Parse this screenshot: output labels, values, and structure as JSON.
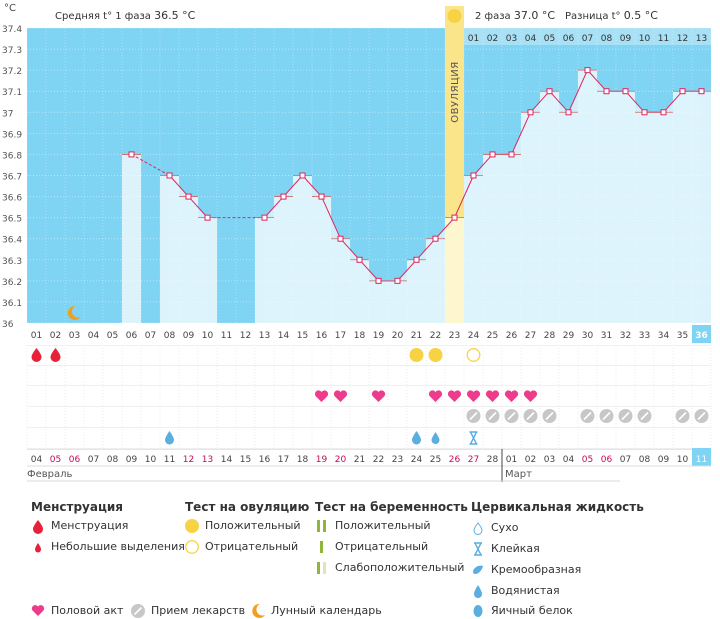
{
  "chart_data": {
    "type": "line",
    "title": "",
    "unit": "°C",
    "ylim": [
      36,
      37.4
    ],
    "y_ticks": [
      "36",
      "36.1",
      "36.2",
      "36.3",
      "36.4",
      "36.5",
      "36.6",
      "36.7",
      "36.8",
      "36.9",
      "37",
      "37.1",
      "37.2",
      "37.3",
      "37.4"
    ],
    "phase1_label": "Средняя t° 1 фаза",
    "phase1_value": "36.5 °C",
    "phase2_label": "2 фаза",
    "phase2_value": "37.0 °C",
    "diff_label": "Разница t°",
    "diff_value": "0.5 °C",
    "ovulation_label": "ОВУЛЯЦИЯ",
    "ovulation_day": 23,
    "cycle_days": [
      "01",
      "02",
      "03",
      "04",
      "05",
      "06",
      "07",
      "08",
      "09",
      "10",
      "11",
      "12",
      "13",
      "14",
      "15",
      "16",
      "17",
      "18",
      "19",
      "20",
      "21",
      "22",
      "23",
      "24",
      "25",
      "26",
      "27",
      "28",
      "29",
      "30",
      "31",
      "32",
      "33",
      "34",
      "35",
      "36"
    ],
    "phase2_days": [
      "01",
      "02",
      "03",
      "04",
      "05",
      "06",
      "07",
      "08",
      "09",
      "10",
      "11",
      "12",
      "13"
    ],
    "temperatures": [
      null,
      null,
      null,
      null,
      null,
      36.8,
      null,
      36.7,
      36.6,
      36.5,
      null,
      null,
      36.5,
      36.6,
      36.7,
      36.6,
      36.4,
      36.3,
      36.2,
      36.2,
      36.3,
      36.4,
      36.5,
      36.7,
      36.8,
      36.8,
      37.0,
      37.1,
      37.0,
      37.2,
      37.1,
      37.1,
      37.0,
      37.0,
      37.1,
      37.1
    ],
    "dates": [
      "04",
      "05",
      "06",
      "07",
      "08",
      "09",
      "10",
      "11",
      "12",
      "13",
      "14",
      "15",
      "16",
      "17",
      "18",
      "19",
      "20",
      "21",
      "22",
      "23",
      "24",
      "25",
      "26",
      "27",
      "28",
      "01",
      "02",
      "03",
      "04",
      "05",
      "06",
      "07",
      "08",
      "09",
      "10",
      "11"
    ],
    "weekend_date_indices": [
      1,
      2,
      8,
      9,
      15,
      16,
      22,
      23,
      29,
      30
    ],
    "month_labels": [
      "Февраль",
      "Март"
    ],
    "march_start_index": 25,
    "today_index": 35,
    "today_label": "11",
    "menstruation_days": [
      1,
      2
    ],
    "ovulation_test_positive": [
      21,
      22
    ],
    "ovulation_test_negative": [
      24
    ],
    "intercourse_days": [
      16,
      17,
      19,
      22,
      23,
      24,
      25,
      26,
      27
    ],
    "medication_days": [
      24,
      25,
      26,
      27,
      28,
      30,
      31,
      32,
      33,
      35,
      36
    ],
    "fluid_watery_days": [
      8,
      21
    ],
    "fluid_creamy_days": [
      22
    ],
    "fluid_sticky_days": [
      24
    ],
    "moon_day": 3
  },
  "legend": {
    "menstruation": {
      "title": "Менструация",
      "items": [
        "Менструация",
        "Небольшие выделения"
      ]
    },
    "ovulation_test": {
      "title": "Тест на овуляцию",
      "items": [
        "Положительный",
        "Отрицательный"
      ]
    },
    "pregnancy_test": {
      "title": "Тест на беременность",
      "items": [
        "Положительный",
        "Отрицательный",
        "Слабоположительный"
      ]
    },
    "cervical": {
      "title": "Цервикальная жидкость",
      "items": [
        "Сухо",
        "Клейкая",
        "Кремообразная",
        "Водянистая",
        "Яичный белок"
      ]
    },
    "bottom": {
      "intercourse": "Половой акт",
      "medication": "Прием лекарств",
      "lunar": "Лунный календарь"
    }
  },
  "colors": {
    "sky": "#7fd3f3",
    "sky_light": "#a8e0f5",
    "bar": "#ddf3fc",
    "bar_line": "#5bbde4",
    "line": "#e0245e",
    "ovulation": "#fbe58a",
    "heart": "#ee3b8b",
    "drop": "#e8213b",
    "sun": "#f7d343",
    "pill": "#c7c7c7",
    "water": "#5aaee0",
    "green": "#8fb63a",
    "moon": "#f0a020",
    "accent_text": "#c40a5c"
  }
}
